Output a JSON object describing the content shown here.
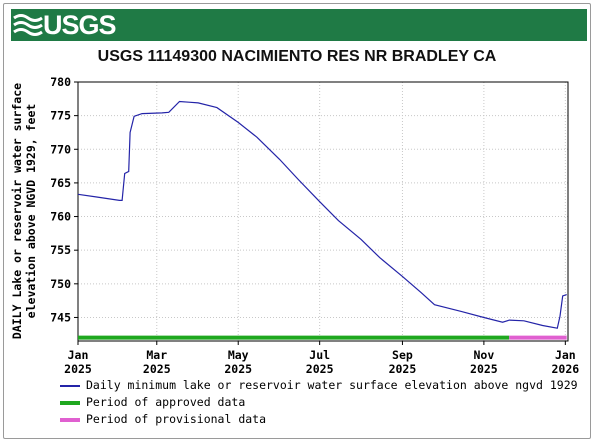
{
  "header": {
    "logo_text": "USGS"
  },
  "chart_data": {
    "type": "line",
    "title": "USGS 11149300 NACIMIENTO RES NR BRADLEY CA",
    "ylabel_lines": [
      "DAILY Lake or reservoir water surface",
      "elevation above NGVD 1929, feet"
    ],
    "ylim": [
      741.5,
      780
    ],
    "y_ticks": [
      745,
      750,
      755,
      760,
      765,
      770,
      775,
      780
    ],
    "x_ticks": [
      {
        "date": "2025-01-01",
        "line1": "Jan",
        "line2": "2025"
      },
      {
        "date": "2025-03-01",
        "line1": "Mar",
        "line2": "2025"
      },
      {
        "date": "2025-05-01",
        "line1": "May",
        "line2": "2025"
      },
      {
        "date": "2025-07-01",
        "line1": "Jul",
        "line2": "2025"
      },
      {
        "date": "2025-09-01",
        "line1": "Sep",
        "line2": "2025"
      },
      {
        "date": "2025-11-01",
        "line1": "Nov",
        "line2": "2025"
      },
      {
        "date": "2026-01-01",
        "line1": "Jan",
        "line2": "2026"
      }
    ],
    "xlim": [
      "2025-01-01",
      "2026-01-03"
    ],
    "grid": true,
    "series": [
      {
        "name": "Daily minimum lake or reservoir water surface elevation above ngvd 1929",
        "color": "#2424a8",
        "points": [
          [
            "2025-01-01",
            763.3
          ],
          [
            "2025-01-15",
            762.9
          ],
          [
            "2025-02-01",
            762.4
          ],
          [
            "2025-02-03",
            762.4
          ],
          [
            "2025-02-05",
            766.4
          ],
          [
            "2025-02-08",
            766.7
          ],
          [
            "2025-02-09",
            772.5
          ],
          [
            "2025-02-12",
            774.9
          ],
          [
            "2025-02-18",
            775.3
          ],
          [
            "2025-03-05",
            775.4
          ],
          [
            "2025-03-10",
            775.5
          ],
          [
            "2025-03-18",
            777.1
          ],
          [
            "2025-03-25",
            777.0
          ],
          [
            "2025-04-01",
            776.9
          ],
          [
            "2025-04-15",
            776.2
          ],
          [
            "2025-05-01",
            774.0
          ],
          [
            "2025-05-15",
            771.8
          ],
          [
            "2025-06-01",
            768.5
          ],
          [
            "2025-06-15",
            765.5
          ],
          [
            "2025-07-01",
            762.2
          ],
          [
            "2025-07-15",
            759.4
          ],
          [
            "2025-08-01",
            756.6
          ],
          [
            "2025-08-15",
            753.9
          ],
          [
            "2025-09-01",
            751.1
          ],
          [
            "2025-09-15",
            748.7
          ],
          [
            "2025-09-25",
            746.9
          ],
          [
            "2025-10-15",
            745.9
          ],
          [
            "2025-11-01",
            745.0
          ],
          [
            "2025-11-15",
            744.3
          ],
          [
            "2025-11-20",
            744.6
          ],
          [
            "2025-12-01",
            744.5
          ],
          [
            "2025-12-15",
            743.8
          ],
          [
            "2025-12-26",
            743.4
          ],
          [
            "2025-12-28",
            745.2
          ],
          [
            "2025-12-30",
            748.2
          ],
          [
            "2026-01-02",
            748.4
          ]
        ]
      }
    ],
    "approval_periods": [
      {
        "name": "Period of approved data",
        "color": "#1fa81f",
        "start": "2025-01-01",
        "end": "2025-11-20"
      },
      {
        "name": "Period of provisional data",
        "color": "#e060d0",
        "start": "2025-11-20",
        "end": "2026-01-02"
      }
    ]
  }
}
